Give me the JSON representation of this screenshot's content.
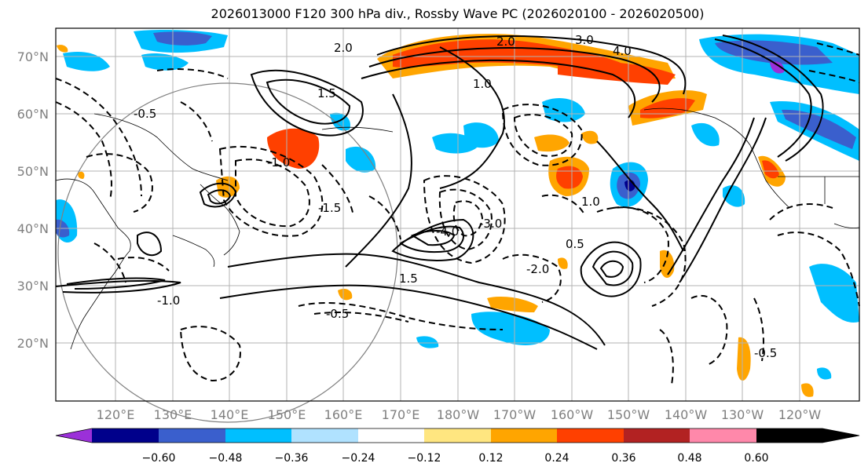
{
  "title": "2026013000 F120 300 hPa div., Rossby Wave PC (2026020100 - 2026020500)",
  "map": {
    "lat_labels": [
      "70°N",
      "60°N",
      "50°N",
      "40°N",
      "30°N",
      "20°N"
    ],
    "lon_labels": [
      "120°E",
      "130°E",
      "140°E",
      "150°E",
      "160°E",
      "170°E",
      "180°W",
      "170°W",
      "160°W",
      "150°W",
      "140°W",
      "130°W",
      "120°W"
    ],
    "contour_labels": [
      "2.0",
      "3.0",
      "4.0",
      "1.0",
      "1.5",
      "-0.5",
      "-1.0",
      "-1.5",
      "-2.0",
      "-3.0",
      "-4.0",
      "0.5",
      "-1.0",
      "-0.5",
      "2.0",
      "-0.5",
      "1.5",
      "1.0"
    ]
  },
  "colorbar": {
    "ticks": [
      "−0.60",
      "−0.48",
      "−0.36",
      "−0.24",
      "−0.12",
      "0.12",
      "0.24",
      "0.36",
      "0.48",
      "0.60"
    ],
    "colors": [
      "#9b30d9",
      "#00008b",
      "#3a5fcd",
      "#00bfff",
      "#b0e2ff",
      "#ffffff",
      "#ffe680",
      "#ffa500",
      "#ff4000",
      "#b22222",
      "#ff88aa"
    ]
  }
}
